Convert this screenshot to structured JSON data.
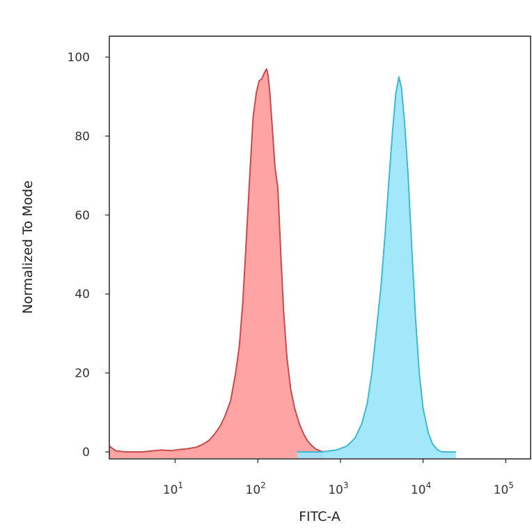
{
  "chart_data": {
    "type": "area",
    "title": "",
    "xlabel": "FITC-A",
    "ylabel": "Normalized To Mode",
    "x_scale": "log",
    "xlim": [
      1.6,
      200000
    ],
    "ylim": [
      0,
      100
    ],
    "grid": false,
    "legend": "none",
    "x_ticks": [
      {
        "base": "10",
        "exp": "1",
        "value": 10
      },
      {
        "base": "10",
        "exp": "2",
        "value": 100
      },
      {
        "base": "10",
        "exp": "3",
        "value": 1000
      },
      {
        "base": "10",
        "exp": "4",
        "value": 10000
      },
      {
        "base": "10",
        "exp": "5",
        "value": 100000
      }
    ],
    "y_ticks": [
      "0",
      "20",
      "40",
      "60",
      "80",
      "100"
    ],
    "series": [
      {
        "fill": "#ff9a9a",
        "stroke": "#c84a4a",
        "points": [
          [
            1.6,
            1.5
          ],
          [
            1.9,
            0.3
          ],
          [
            2.5,
            0
          ],
          [
            4,
            0
          ],
          [
            5.5,
            0.3
          ],
          [
            7,
            0.5
          ],
          [
            9,
            0.3
          ],
          [
            11,
            0.6
          ],
          [
            14,
            0.8
          ],
          [
            18,
            1.2
          ],
          [
            22,
            2
          ],
          [
            26,
            3
          ],
          [
            30,
            4.5
          ],
          [
            35,
            6.5
          ],
          [
            40,
            9
          ],
          [
            47,
            13
          ],
          [
            54,
            20
          ],
          [
            60,
            27
          ],
          [
            66,
            38
          ],
          [
            72,
            52
          ],
          [
            80,
            70
          ],
          [
            88,
            85
          ],
          [
            96,
            91
          ],
          [
            104,
            94
          ],
          [
            112,
            94.5
          ],
          [
            120,
            96
          ],
          [
            128,
            97
          ],
          [
            133,
            95.5
          ],
          [
            140,
            91
          ],
          [
            150,
            82
          ],
          [
            162,
            72
          ],
          [
            175,
            67
          ],
          [
            190,
            50
          ],
          [
            205,
            36
          ],
          [
            225,
            24
          ],
          [
            250,
            16
          ],
          [
            280,
            11
          ],
          [
            320,
            7
          ],
          [
            360,
            4.5
          ],
          [
            400,
            2.8
          ],
          [
            450,
            1.6
          ],
          [
            500,
            0.8
          ],
          [
            560,
            0.3
          ],
          [
            620,
            0
          ]
        ]
      },
      {
        "fill": "#99e6fa",
        "stroke": "#3fb8d4",
        "points": [
          [
            300,
            0
          ],
          [
            600,
            0
          ],
          [
            900,
            0.5
          ],
          [
            1200,
            1.5
          ],
          [
            1500,
            3.5
          ],
          [
            1800,
            7
          ],
          [
            2100,
            12
          ],
          [
            2400,
            20
          ],
          [
            2700,
            30
          ],
          [
            3100,
            42
          ],
          [
            3500,
            56
          ],
          [
            3900,
            70
          ],
          [
            4300,
            82
          ],
          [
            4700,
            91
          ],
          [
            5100,
            95
          ],
          [
            5500,
            92
          ],
          [
            6000,
            83
          ],
          [
            6600,
            70
          ],
          [
            7300,
            52
          ],
          [
            8100,
            34
          ],
          [
            9000,
            20
          ],
          [
            10000,
            11
          ],
          [
            11500,
            5
          ],
          [
            13000,
            2
          ],
          [
            15000,
            0.5
          ],
          [
            17000,
            0
          ],
          [
            25000,
            0
          ]
        ]
      }
    ]
  }
}
